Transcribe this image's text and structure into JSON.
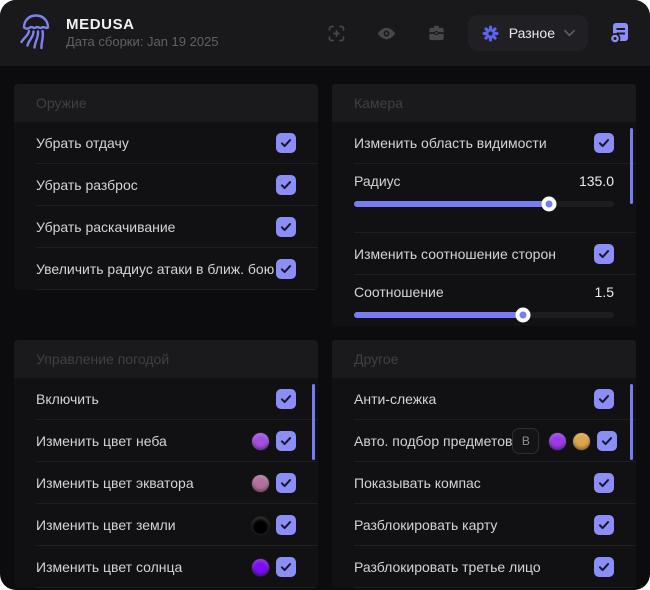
{
  "colors": {
    "accent": "#8a8ef6",
    "slider_fill": "#767df2",
    "scrollbar": "#767df2",
    "window_bg": "#0c0c0e",
    "check_mark": "#16162c"
  },
  "header": {
    "app_name": "MEDUSA",
    "build_date": "Дата сборки: Jan 19 2025",
    "toolbar_icons": [
      "fov-target-icon",
      "visibility-eye-icon",
      "inventory-case-icon"
    ],
    "category_dropdown": {
      "label": "Разное",
      "icon": "gear-icon"
    },
    "scripts_icon": "script-list-icon"
  },
  "sections": [
    {
      "title": "Оружие",
      "scrollbar": false,
      "rows": [
        {
          "type": "checkbox",
          "label": "Убрать отдачу",
          "checked": true
        },
        {
          "type": "checkbox",
          "label": "Убрать разброс",
          "checked": true
        },
        {
          "type": "checkbox",
          "label": "Убрать раскачивание",
          "checked": true
        },
        {
          "type": "checkbox",
          "label": "Увеличить радиус атаки в ближ. бою",
          "checked": true
        }
      ]
    },
    {
      "title": "Камера",
      "scrollbar": true,
      "rows": [
        {
          "type": "checkbox",
          "label": "Изменить область видимости",
          "checked": true
        },
        {
          "type": "slider",
          "label": "Радиус",
          "value": "135.0",
          "percent": 75
        },
        {
          "type": "checkbox",
          "label": "Изменить соотношение сторон",
          "checked": true
        },
        {
          "type": "slider",
          "label": "Соотношение",
          "value": "1.5",
          "percent": 65
        }
      ]
    },
    {
      "title": "Управление погодой",
      "scrollbar": true,
      "rows": [
        {
          "type": "checkbox",
          "label": "Включить",
          "checked": true
        },
        {
          "type": "color-checkbox",
          "label": "Изменить цвет неба",
          "swatch": "#a34fe0",
          "checked": true
        },
        {
          "type": "color-checkbox",
          "label": "Изменить цвет экватора",
          "swatch": "#b1719d",
          "checked": true
        },
        {
          "type": "color-checkbox",
          "label": "Изменить цвет земли",
          "swatch": "#000000",
          "checked": true
        },
        {
          "type": "color-checkbox",
          "label": "Изменить цвет солнца",
          "swatch": "#7d0df2",
          "checked": true
        }
      ]
    },
    {
      "title": "Другое",
      "scrollbar": true,
      "rows": [
        {
          "type": "checkbox",
          "label": "Анти-слежка",
          "checked": true
        },
        {
          "type": "keybind-colors",
          "label": "Авто. подбор предметов",
          "key": "B",
          "swatches": [
            "#9a3bea",
            "#dca64f"
          ],
          "checked": true
        },
        {
          "type": "checkbox",
          "label": "Показывать компас",
          "checked": true
        },
        {
          "type": "checkbox",
          "label": "Разблокировать карту",
          "checked": true
        },
        {
          "type": "checkbox",
          "label": "Разблокировать третье лицо",
          "checked": true
        }
      ]
    }
  ]
}
